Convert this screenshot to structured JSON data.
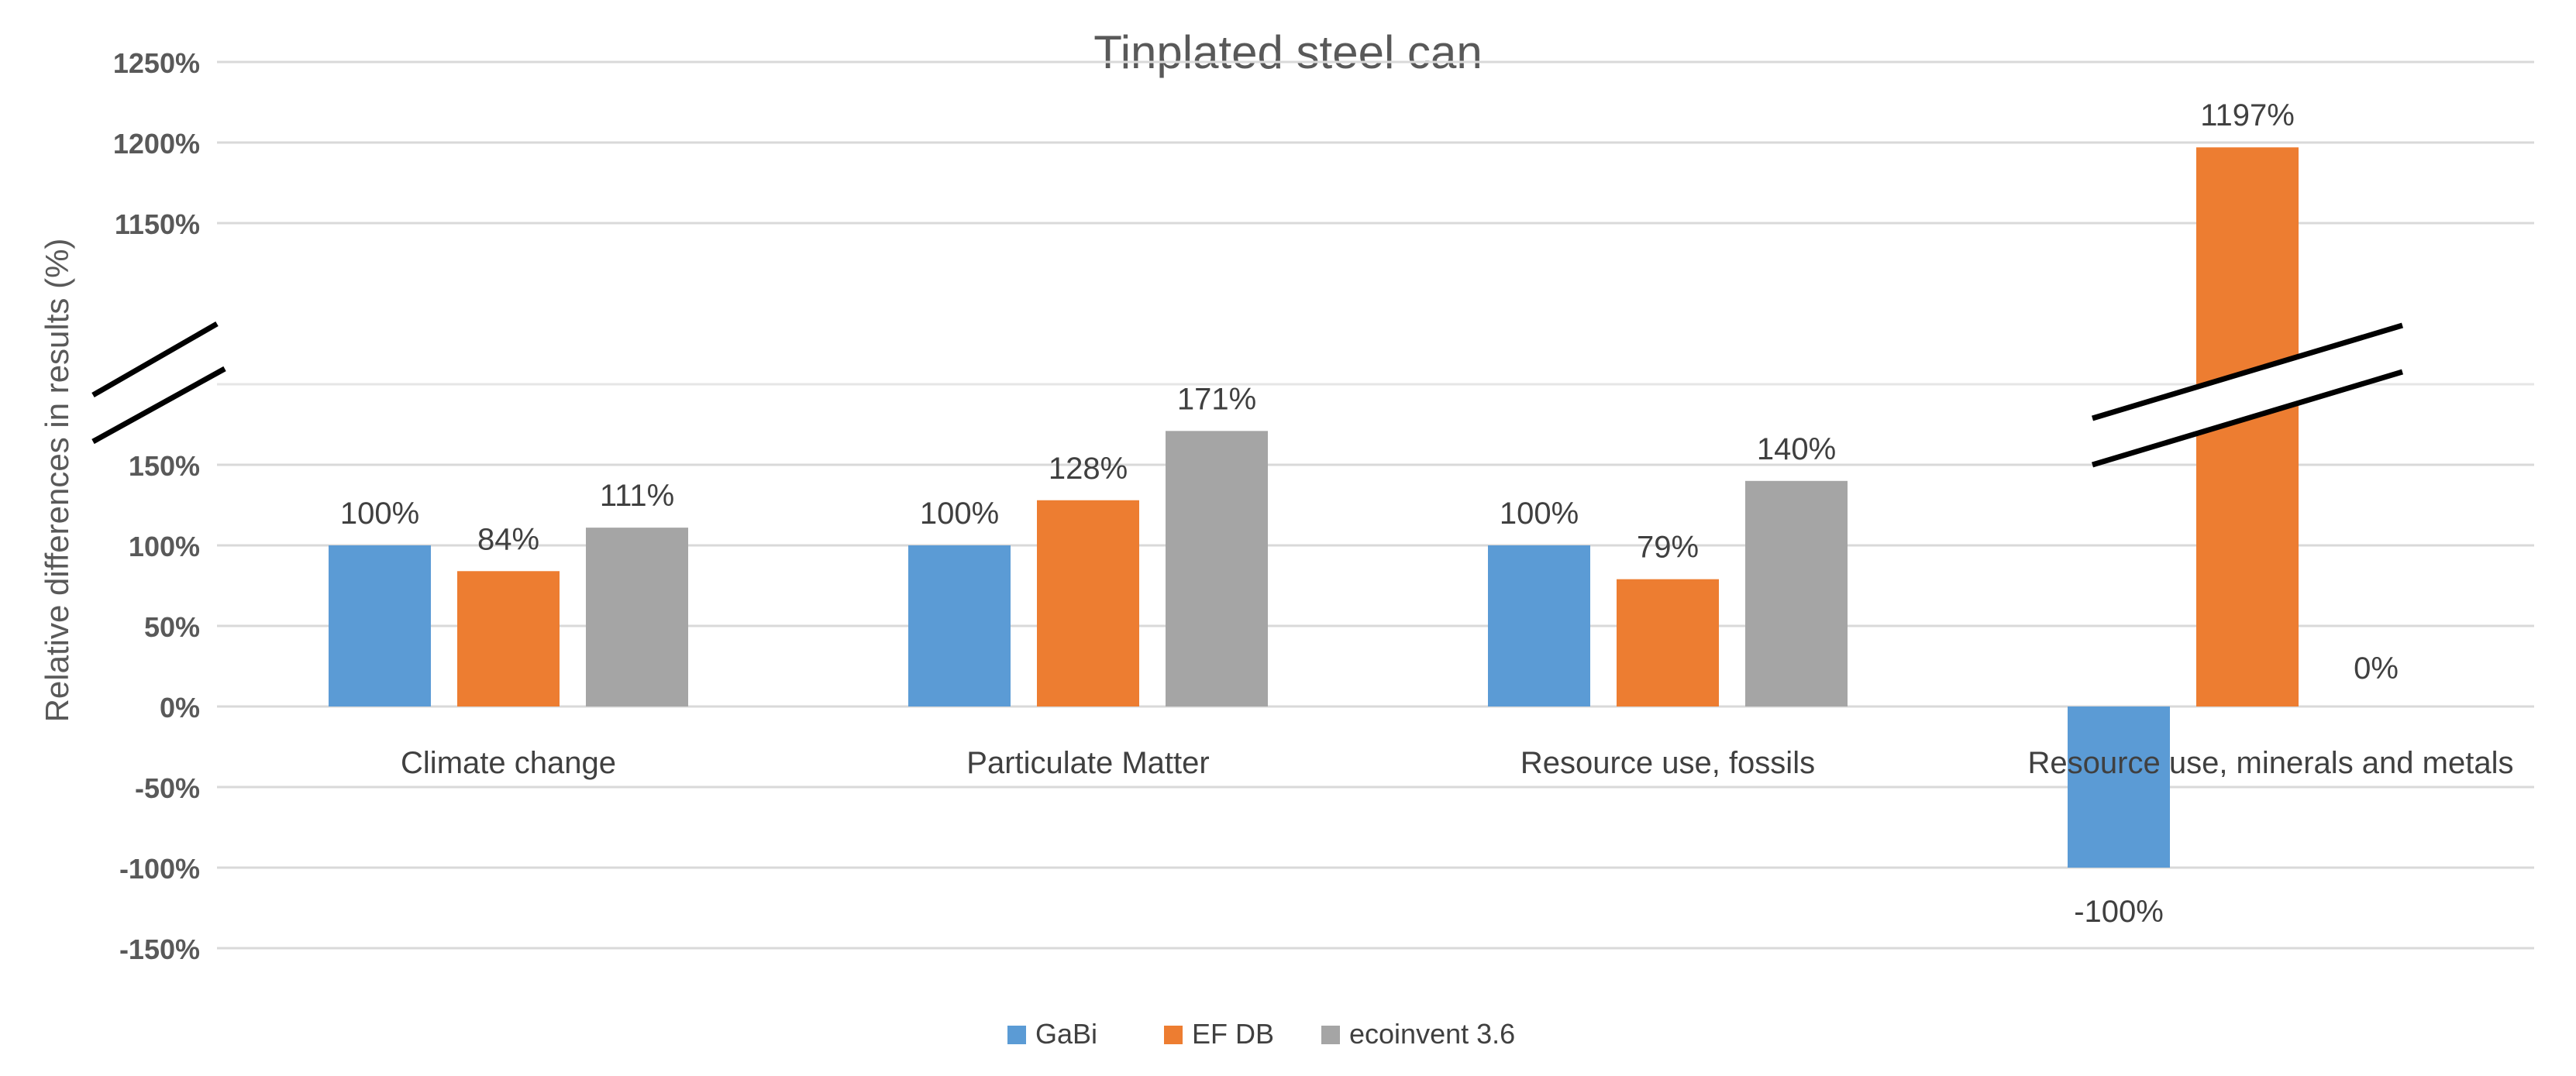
{
  "chart_data": {
    "type": "bar",
    "title": "Tinplated steel can",
    "xlabel": "",
    "ylabel": "Relative differences in results (%)",
    "categories": [
      "Climate change",
      "Particulate Matter",
      "Resource use, fossils",
      "Resource use, minerals and metals"
    ],
    "series": [
      {
        "name": "GaBi",
        "color": "#5b9bd5",
        "values": [
          100,
          100,
          100,
          -100
        ],
        "labels": [
          "100%",
          "100%",
          "100%",
          "-100%"
        ]
      },
      {
        "name": "EF DB",
        "color": "#ed7d31",
        "values": [
          84,
          128,
          79,
          1197
        ],
        "labels": [
          "84%",
          "128%",
          "79%",
          "1197%"
        ]
      },
      {
        "name": "ecoinvent 3.6",
        "color": "#a5a5a5",
        "values": [
          111,
          171,
          140,
          0
        ],
        "labels": [
          "111%",
          "171%",
          "140%",
          "0%"
        ]
      }
    ],
    "ylim": [
      -150,
      1250
    ],
    "axis_break": [
      200,
      1100
    ],
    "lower_ticks": [
      -150,
      -100,
      -50,
      0,
      50,
      100,
      150
    ],
    "upper_ticks": [
      1150,
      1200,
      1250
    ],
    "tick_labels": {
      "-150": "-150%",
      "-100": "-100%",
      "-50": "-50%",
      "0": "0%",
      "50": "50%",
      "100": "100%",
      "150": "150%",
      "1150": "1150%",
      "1200": "1200%",
      "1250": "1250%"
    },
    "grid": true,
    "legend_position": "bottom"
  }
}
